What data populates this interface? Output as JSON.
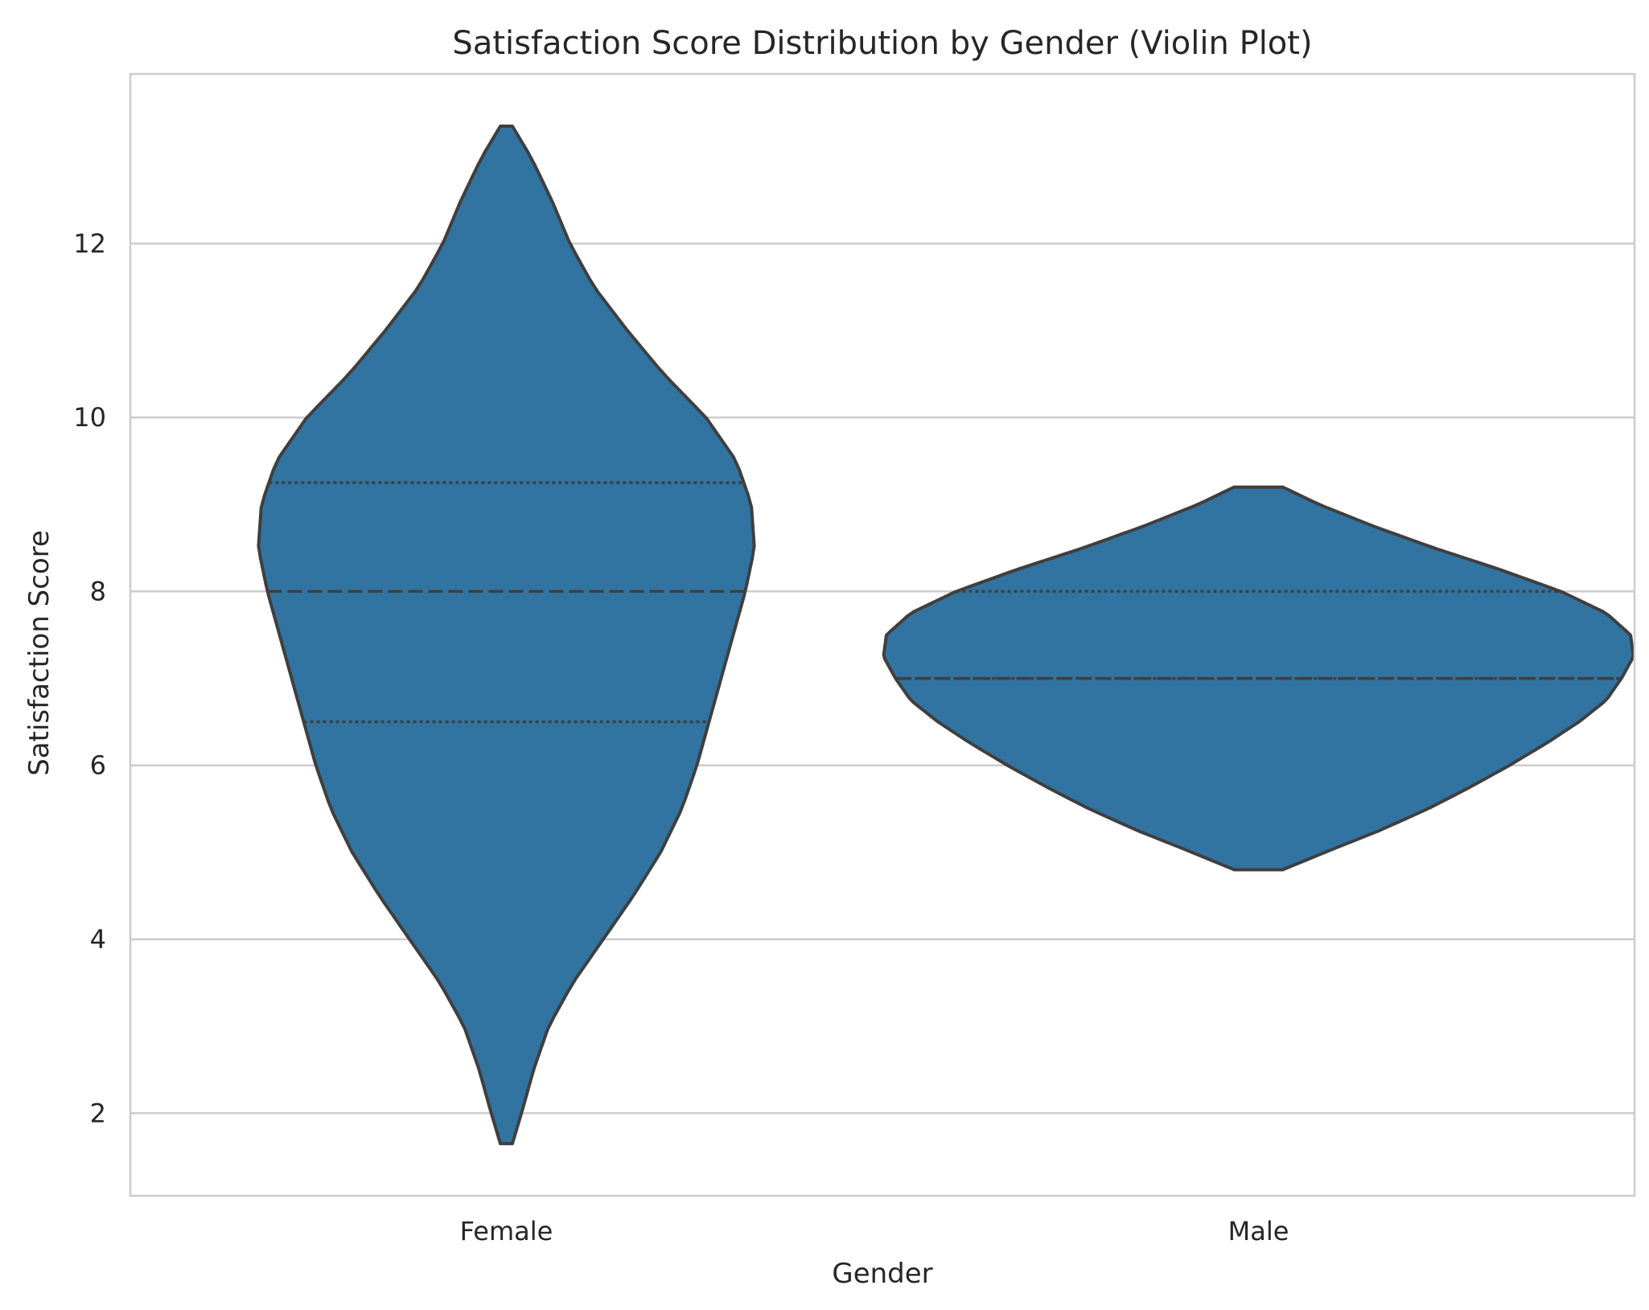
{
  "chart_data": {
    "type": "violin",
    "title": "Satisfaction Score Distribution by Gender (Violin Plot)",
    "xlabel": "Gender",
    "ylabel": "Satisfaction Score",
    "categories": [
      "Female",
      "Male"
    ],
    "ylim": [
      1.05,
      13.95
    ],
    "yticks": [
      2,
      4,
      6,
      8,
      10,
      12
    ],
    "grid": true,
    "colors": {
      "fill": "#3274a1",
      "edge": "#3f3f3f",
      "grid": "#cccccc",
      "frame": "#cccccc"
    },
    "violins": [
      {
        "category": "Female",
        "min": 1.65,
        "max": 13.35,
        "q1": 6.5,
        "median": 8.0,
        "q3": 9.25,
        "profile": [
          [
            1.65,
            0.02
          ],
          [
            2.0,
            0.05
          ],
          [
            2.5,
            0.09
          ],
          [
            3.0,
            0.14
          ],
          [
            3.5,
            0.22
          ],
          [
            4.0,
            0.32
          ],
          [
            4.5,
            0.42
          ],
          [
            5.0,
            0.51
          ],
          [
            5.5,
            0.58
          ],
          [
            6.0,
            0.63
          ],
          [
            6.5,
            0.67
          ],
          [
            7.0,
            0.71
          ],
          [
            7.5,
            0.75
          ],
          [
            8.0,
            0.79
          ],
          [
            8.5,
            0.82
          ],
          [
            9.0,
            0.81
          ],
          [
            9.5,
            0.76
          ],
          [
            10.0,
            0.66
          ],
          [
            10.5,
            0.52
          ],
          [
            11.0,
            0.4
          ],
          [
            11.5,
            0.29
          ],
          [
            12.0,
            0.21
          ],
          [
            12.5,
            0.15
          ],
          [
            13.0,
            0.08
          ],
          [
            13.35,
            0.02
          ]
        ]
      },
      {
        "category": "Male",
        "min": 4.8,
        "max": 9.2,
        "q1": 7.0,
        "median": 7.0,
        "q3": 8.0,
        "profile": [
          [
            4.8,
            0.08
          ],
          [
            5.0,
            0.22
          ],
          [
            5.25,
            0.4
          ],
          [
            5.5,
            0.56
          ],
          [
            5.75,
            0.7
          ],
          [
            6.0,
            0.83
          ],
          [
            6.25,
            0.95
          ],
          [
            6.5,
            1.06
          ],
          [
            6.75,
            1.15
          ],
          [
            7.0,
            1.2
          ],
          [
            7.25,
            1.24
          ],
          [
            7.5,
            1.23
          ],
          [
            7.75,
            1.15
          ],
          [
            8.0,
            1.0
          ],
          [
            8.25,
            0.8
          ],
          [
            8.5,
            0.58
          ],
          [
            8.75,
            0.38
          ],
          [
            9.0,
            0.2
          ],
          [
            9.2,
            0.08
          ]
        ]
      }
    ]
  }
}
